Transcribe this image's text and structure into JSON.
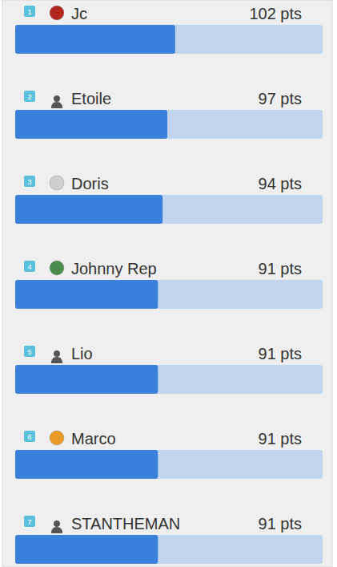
{
  "chart_data": {
    "type": "bar",
    "orientation": "horizontal",
    "categories": [
      "Jc",
      "Etoile",
      "Doris",
      "Johnny Rep",
      "Lio",
      "Marco",
      "STANTHEMAN"
    ],
    "ranks": [
      1,
      2,
      3,
      4,
      5,
      6,
      7
    ],
    "values": [
      102,
      97,
      94,
      91,
      91,
      91,
      91
    ],
    "value_labels": [
      "102 pts",
      "97 pts",
      "94 pts",
      "91 pts",
      "91 pts",
      "91 pts",
      "91 pts"
    ],
    "xlim": [
      0,
      196
    ],
    "color": "#3a80db",
    "data_labels": true,
    "tick_labels": false
  }
}
